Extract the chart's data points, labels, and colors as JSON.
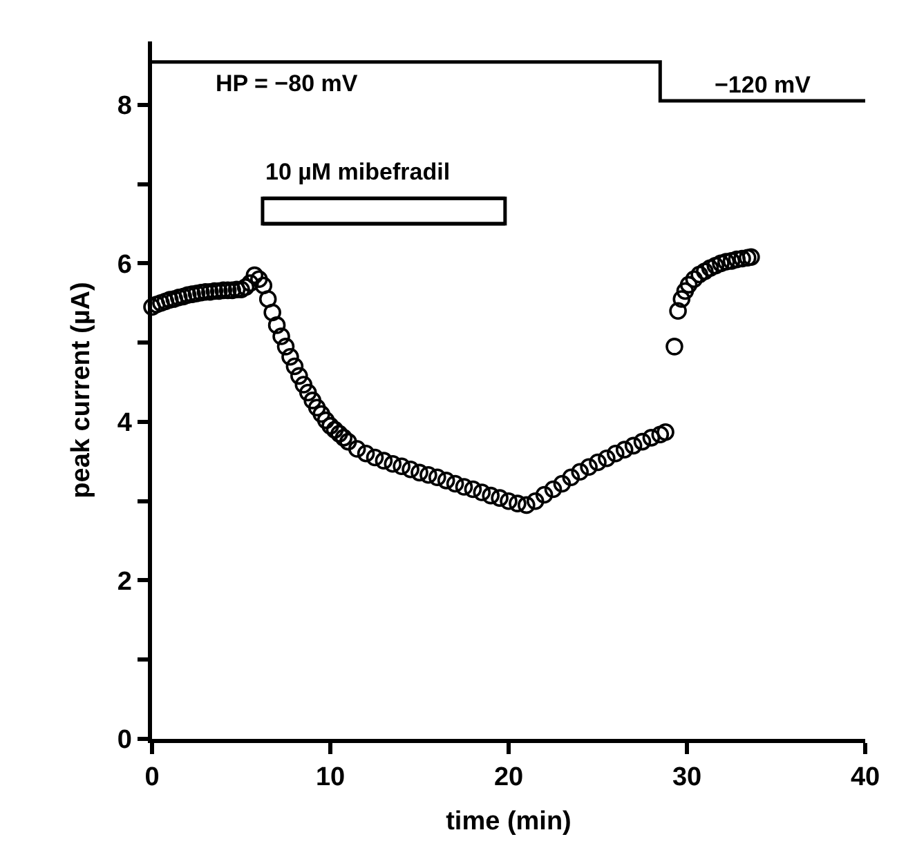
{
  "chart_data": {
    "type": "scatter",
    "xlabel": "time (min)",
    "ylabel": "peak current (µA)",
    "xlim": [
      0,
      40
    ],
    "xticks": [
      0,
      10,
      20,
      30,
      40
    ],
    "ylim": [
      0,
      8.8
    ],
    "yticks": [
      0,
      {
        "value": 1,
        "label": null
      },
      2,
      {
        "value": 3,
        "label": null
      },
      4,
      {
        "value": 5,
        "label": null
      },
      6,
      {
        "value": 7,
        "label": null
      },
      8
    ],
    "marker": "circle",
    "legend": false,
    "series": [
      {
        "color": "#000000",
        "x": [
          0,
          0.25,
          0.5,
          0.75,
          1,
          1.25,
          1.5,
          1.75,
          2,
          2.25,
          2.5,
          2.75,
          3,
          3.25,
          3.5,
          3.75,
          4,
          4.25,
          4.5,
          4.75,
          5,
          5.25,
          5.5,
          5.75,
          6,
          6.25,
          6.5,
          6.75,
          7,
          7.25,
          7.5,
          7.75,
          8,
          8.25,
          8.5,
          8.75,
          9,
          9.25,
          9.5,
          9.75,
          10,
          10.25,
          10.5,
          10.75,
          11,
          11.5,
          12,
          12.5,
          13,
          13.5,
          14,
          14.5,
          15,
          15.5,
          16,
          16.5,
          17,
          17.5,
          18,
          18.5,
          19,
          19.5,
          20,
          20.5,
          21,
          21.5,
          22,
          22.5,
          23,
          23.5,
          24,
          24.5,
          25,
          25.5,
          26,
          26.5,
          27,
          27.5,
          28,
          28.5,
          28.8,
          29.3,
          29.5,
          29.7,
          29.9,
          30.1,
          30.4,
          30.7,
          31,
          31.3,
          31.6,
          31.9,
          32.2,
          32.5,
          32.8,
          33.1,
          33.4,
          33.6
        ],
        "values": [
          5.45,
          5.48,
          5.5,
          5.52,
          5.54,
          5.55,
          5.57,
          5.58,
          5.6,
          5.61,
          5.62,
          5.63,
          5.64,
          5.64,
          5.65,
          5.65,
          5.66,
          5.66,
          5.66,
          5.67,
          5.67,
          5.7,
          5.75,
          5.85,
          5.8,
          5.72,
          5.55,
          5.38,
          5.22,
          5.08,
          4.95,
          4.82,
          4.7,
          4.58,
          4.47,
          4.37,
          4.27,
          4.18,
          4.1,
          4.02,
          3.95,
          3.9,
          3.85,
          3.8,
          3.75,
          3.66,
          3.6,
          3.55,
          3.51,
          3.47,
          3.44,
          3.4,
          3.36,
          3.33,
          3.3,
          3.26,
          3.22,
          3.18,
          3.15,
          3.11,
          3.07,
          3.04,
          3.0,
          2.97,
          2.95,
          3.0,
          3.08,
          3.15,
          3.22,
          3.3,
          3.37,
          3.43,
          3.49,
          3.54,
          3.6,
          3.65,
          3.7,
          3.75,
          3.8,
          3.84,
          3.87,
          4.95,
          5.4,
          5.55,
          5.65,
          5.73,
          5.8,
          5.86,
          5.9,
          5.94,
          5.97,
          6.0,
          6.02,
          6.03,
          6.05,
          6.06,
          6.07,
          6.08
        ]
      },
      {
        "type": "step",
        "color": "#000000",
        "marker": "none",
        "x": [
          0,
          28.5,
          40
        ],
        "values": [
          8.54,
          8.05,
          8.05
        ]
      },
      {
        "type": "line",
        "name": "10 µM mibefradil",
        "color": "#000000",
        "marker": "none",
        "x": [
          6.2,
          19.8
        ],
        "values": [
          6.82,
          6.82
        ]
      },
      {
        "type": "line",
        "color": "#000000",
        "marker": "none",
        "x": [
          6.2,
          19.8
        ],
        "values": [
          6.5,
          6.5
        ]
      }
    ],
    "annotations": [
      "HP = −80 mV",
      "−120 mV"
    ]
  }
}
